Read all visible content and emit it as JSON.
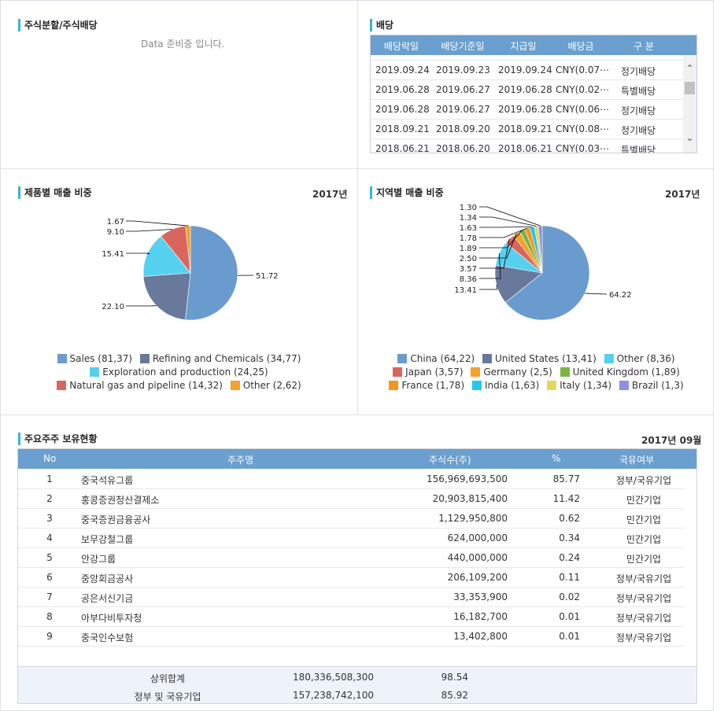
{
  "split": {
    "title": "주식분할/주식배당",
    "nodata": "Data 준비중 입니다."
  },
  "dividend": {
    "title": "배당",
    "headers": [
      "배당락일",
      "배당기준일",
      "지급일",
      "배당금",
      "구 분"
    ],
    "rows": [
      [
        "2019.09.24",
        "2019.09.23",
        "2019.09.24",
        "CNY(0.07⋯",
        "정기배당"
      ],
      [
        "2019.06.28",
        "2019.06.27",
        "2019.06.28",
        "CNY(0.02⋯",
        "특별배당"
      ],
      [
        "2019.06.28",
        "2019.06.27",
        "2019.06.28",
        "CNY(0.06⋯",
        "정기배당"
      ],
      [
        "2018.09.21",
        "2018.09.20",
        "2018.09.21",
        "CNY(0.08⋯",
        "정기배당"
      ],
      [
        "2018.06.21",
        "2018.06.20",
        "2018.06.21",
        "CNY(0.03⋯",
        "특별배당"
      ]
    ]
  },
  "product": {
    "title": "제품별 매출 비중",
    "year": "2017년",
    "legend": [
      "Sales (81,37)",
      "Refining and Chemicals (34,77)",
      "Exploration and production (24,25)",
      "Natural gas and pipeline (14,32)",
      "Other (2,62)"
    ]
  },
  "region": {
    "title": "지역별 매출 비중",
    "year": "2017년",
    "legend": [
      "China (64,22)",
      "United States (13,41)",
      "Other (8,36)",
      "Japan (3,57)",
      "Germany (2,5)",
      "United Kingdom (1,89)",
      "France (1,78)",
      "India (1,63)",
      "Italy (1,34)",
      "Brazil (1,3)"
    ]
  },
  "chart_data": [
    {
      "type": "pie",
      "title": "제품별 매출 비중",
      "categories": [
        "Sales",
        "Refining and Chemicals",
        "Exploration and production",
        "Natural gas and pipeline",
        "Other"
      ],
      "values": [
        51.72,
        22.1,
        15.41,
        9.1,
        1.67
      ],
      "labels": [
        "51.72",
        "22.10",
        "15.41",
        "9.10",
        "1.67"
      ],
      "colors": [
        "#6a9bcf",
        "#69799c",
        "#56d0ef",
        "#d8665f",
        "#f3a22a"
      ]
    },
    {
      "type": "pie",
      "title": "지역별 매출 비중",
      "categories": [
        "China",
        "United States",
        "Other",
        "Japan",
        "Germany",
        "United Kingdom",
        "France",
        "India",
        "Italy",
        "Brazil"
      ],
      "values": [
        64.22,
        13.41,
        8.36,
        3.57,
        2.5,
        1.89,
        1.78,
        1.63,
        1.34,
        1.3
      ],
      "labels": [
        "64.22",
        "13.41",
        "8.36",
        "3.57",
        "2.50",
        "1.89",
        "1.78",
        "1.63",
        "1.34",
        "1.30"
      ],
      "colors": [
        "#6a9bcf",
        "#69799c",
        "#56d0ef",
        "#d8665f",
        "#f3a22a",
        "#7cb342",
        "#f7941d",
        "#26c6f2",
        "#e6d65b",
        "#8e8fe6"
      ]
    }
  ],
  "shareholders": {
    "title": "주요주주 보유현황",
    "date": "2017년 09월",
    "headers": [
      "No",
      "주주명",
      "주식수(주)",
      "%",
      "국유여부"
    ],
    "rows": [
      [
        "1",
        "중국석유그룹",
        "156,969,693,500",
        "85.77",
        "정부/국유기업"
      ],
      [
        "2",
        "홍콩증권청산결제소",
        "20,903,815,400",
        "11.42",
        "민간기업"
      ],
      [
        "3",
        "중국증권금융공사",
        "1,129,950,800",
        "0.62",
        "민간기업"
      ],
      [
        "4",
        "보무강철그룹",
        "624,000,000",
        "0.34",
        "민간기업"
      ],
      [
        "5",
        "안강그룹",
        "440,000,000",
        "0.24",
        "민간기업"
      ],
      [
        "6",
        "중앙회금공사",
        "206,109,200",
        "0.11",
        "정부/국유기업"
      ],
      [
        "7",
        "공은서신기금",
        "33,353,900",
        "0.02",
        "정부/국유기업"
      ],
      [
        "8",
        "아부다비투자청",
        "16,182,700",
        "0.01",
        "정부/국유기업"
      ],
      [
        "9",
        "중국인수보험",
        "13,402,800",
        "0.01",
        "정부/국유기업"
      ]
    ],
    "summary": [
      [
        "상위합계",
        "180,336,508,300",
        "98.54"
      ],
      [
        "정부 및 국유기업",
        "157,238,742,100",
        "85.92"
      ]
    ]
  }
}
